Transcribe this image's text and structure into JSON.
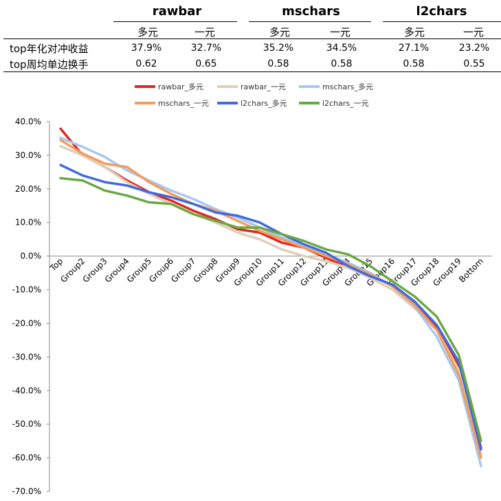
{
  "summary": {
    "groups": [
      "rawbar",
      "mschars",
      "l2chars"
    ],
    "subheaders": [
      "多元",
      "一元",
      "多元",
      "一元",
      "多元",
      "一元"
    ],
    "rows": [
      {
        "label": "top年化对冲收益",
        "values": [
          "37.9%",
          "32.7%",
          "35.2%",
          "34.5%",
          "27.1%",
          "23.2%"
        ]
      },
      {
        "label": "top周均单边换手",
        "values": [
          "0.62",
          "0.65",
          "0.58",
          "0.58",
          "0.58",
          "0.55"
        ]
      }
    ]
  },
  "chart_data": {
    "type": "line",
    "categories": [
      "Top",
      "Group2",
      "Group3",
      "Group4",
      "Group5",
      "Group6",
      "Group7",
      "Group8",
      "Group9",
      "Group10",
      "Group11",
      "Group12",
      "Group13",
      "Group14",
      "Group15",
      "Group16",
      "Group17",
      "Group18",
      "Group19",
      "Bottom"
    ],
    "ylim": [
      -70,
      40
    ],
    "ytick_step": 10,
    "ytick_format": "%.1f%",
    "legend_position": "top",
    "grid": false,
    "series": [
      {
        "name": "rawbar_多元",
        "color": "#e0261f",
        "values": [
          37.9,
          30.0,
          26.5,
          22.5,
          19.0,
          16.5,
          13.5,
          11.0,
          8.0,
          7.0,
          4.0,
          2.5,
          -0.5,
          -3.5,
          -6.0,
          -8.5,
          -14.0,
          -21.0,
          -33.0,
          -57.0
        ]
      },
      {
        "name": "rawbar_一元",
        "color": "#ddd0b8",
        "values": [
          32.7,
          30.0,
          26.5,
          22.0,
          18.5,
          15.5,
          12.5,
          10.0,
          7.0,
          5.0,
          2.0,
          0.0,
          -1.5,
          -3.5,
          -6.5,
          -10.0,
          -15.5,
          -22.0,
          -34.0,
          -59.0
        ]
      },
      {
        "name": "mschars_多元",
        "color": "#a6c8ef",
        "values": [
          35.2,
          32.5,
          29.5,
          25.5,
          22.5,
          19.5,
          17.0,
          14.0,
          11.5,
          8.5,
          5.5,
          3.0,
          0.5,
          -2.0,
          -5.0,
          -9.0,
          -15.0,
          -24.0,
          -37.0,
          -62.5
        ]
      },
      {
        "name": "mschars_一元",
        "color": "#f59b5a",
        "values": [
          34.5,
          30.5,
          27.5,
          26.5,
          22.0,
          18.5,
          15.5,
          13.5,
          10.5,
          7.5,
          5.0,
          2.5,
          0.0,
          -2.5,
          -5.5,
          -9.0,
          -14.5,
          -22.0,
          -35.5,
          -60.0
        ]
      },
      {
        "name": "l2chars_多元",
        "color": "#4169e1",
        "values": [
          27.1,
          24.0,
          22.0,
          21.0,
          19.0,
          17.5,
          15.5,
          13.0,
          12.0,
          10.0,
          6.5,
          3.5,
          1.0,
          -3.0,
          -6.0,
          -8.5,
          -13.5,
          -20.5,
          -31.5,
          -57.5
        ]
      },
      {
        "name": "l2chars_一元",
        "color": "#6aa842",
        "values": [
          23.2,
          22.5,
          19.5,
          18.0,
          16.0,
          15.5,
          12.5,
          10.5,
          8.5,
          8.5,
          6.5,
          4.5,
          2.0,
          0.5,
          -3.0,
          -7.5,
          -12.0,
          -18.0,
          -29.5,
          -55.0
        ]
      }
    ]
  }
}
